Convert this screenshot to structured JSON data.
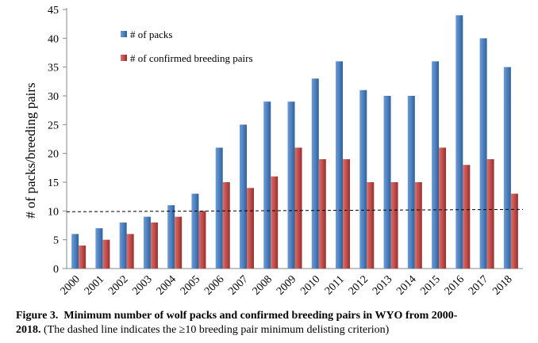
{
  "chart_data": {
    "type": "bar",
    "title": "",
    "xlabel": "",
    "ylabel": "# of packs/breeding pairs",
    "ylim": [
      0,
      45
    ],
    "yticks": [
      0,
      5,
      10,
      15,
      20,
      25,
      30,
      35,
      40,
      45
    ],
    "categories": [
      "2000",
      "2001",
      "2002",
      "2003",
      "2004",
      "2005",
      "2006",
      "2007",
      "2008",
      "2009",
      "2010",
      "2011",
      "2012",
      "2013",
      "2014",
      "2015",
      "2016",
      "2017",
      "2018"
    ],
    "series": [
      {
        "name": "# of packs",
        "color": "#4a7ebb",
        "values": [
          6,
          7,
          8,
          9,
          11,
          13,
          21,
          25,
          29,
          29,
          33,
          36,
          31,
          30,
          30,
          36,
          44,
          40,
          35
        ]
      },
      {
        "name": "# of confirmed breeding pairs",
        "color": "#be4b48",
        "values": [
          4,
          5,
          6,
          8,
          9,
          10,
          15,
          14,
          16,
          21,
          19,
          19,
          15,
          15,
          15,
          21,
          18,
          19,
          13
        ]
      }
    ],
    "reference_line": {
      "value": 10,
      "style": "dashed"
    },
    "legend_position": "top-left",
    "grid": false
  },
  "caption": {
    "label": "Figure 3.",
    "bold_text": "Minimum number of wolf packs and confirmed breeding pairs in WYO from 2000-",
    "continuation": "2018.",
    "note": "(The dashed line indicates the ≥10 breeding pair minimum delisting criterion)"
  }
}
